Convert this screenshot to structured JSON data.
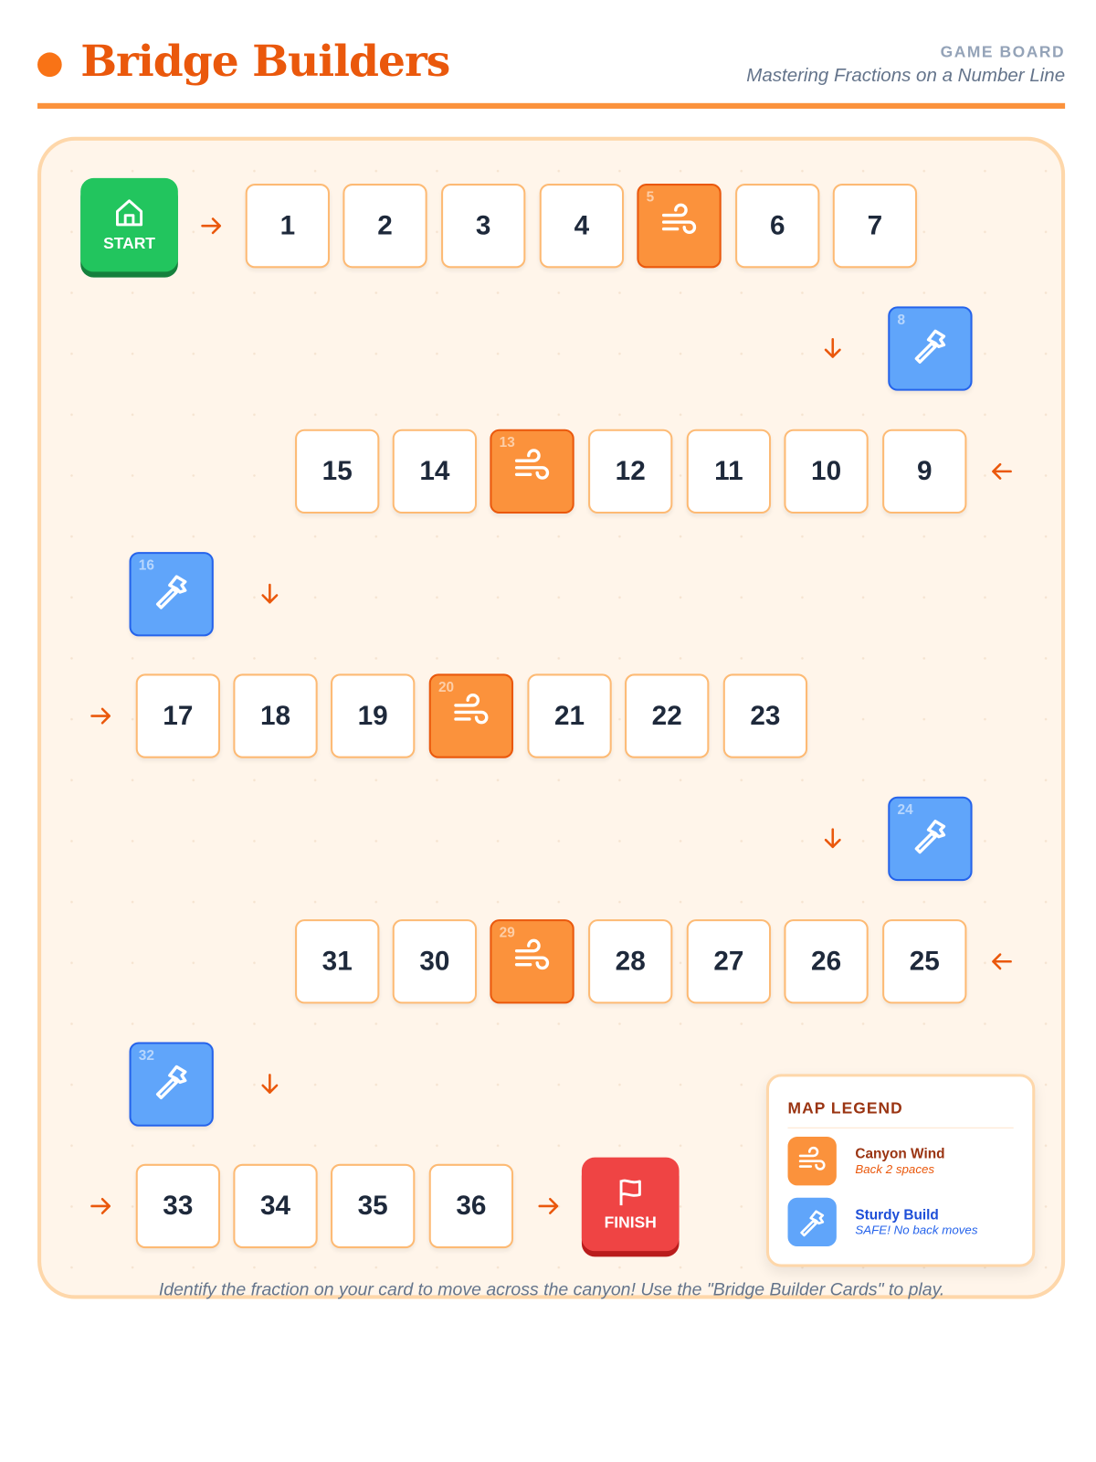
{
  "header": {
    "title": "Bridge Builders",
    "eyebrow": "GAME BOARD",
    "subtitle": "Mastering Fractions on a Number Line"
  },
  "start": {
    "label": "START",
    "icon": "home-icon"
  },
  "finish": {
    "label": "FINISH",
    "icon": "flag-icon"
  },
  "tiles": [
    {
      "n": "1",
      "type": "normal"
    },
    {
      "n": "2",
      "type": "normal"
    },
    {
      "n": "3",
      "type": "normal"
    },
    {
      "n": "4",
      "type": "normal"
    },
    {
      "n": "5",
      "type": "wind"
    },
    {
      "n": "6",
      "type": "normal"
    },
    {
      "n": "7",
      "type": "normal"
    },
    {
      "n": "8",
      "type": "build"
    },
    {
      "n": "9",
      "type": "normal"
    },
    {
      "n": "10",
      "type": "normal"
    },
    {
      "n": "11",
      "type": "normal"
    },
    {
      "n": "12",
      "type": "normal"
    },
    {
      "n": "13",
      "type": "wind"
    },
    {
      "n": "14",
      "type": "normal"
    },
    {
      "n": "15",
      "type": "normal"
    },
    {
      "n": "16",
      "type": "build"
    },
    {
      "n": "17",
      "type": "normal"
    },
    {
      "n": "18",
      "type": "normal"
    },
    {
      "n": "19",
      "type": "normal"
    },
    {
      "n": "20",
      "type": "wind"
    },
    {
      "n": "21",
      "type": "normal"
    },
    {
      "n": "22",
      "type": "normal"
    },
    {
      "n": "23",
      "type": "normal"
    },
    {
      "n": "24",
      "type": "build"
    },
    {
      "n": "25",
      "type": "normal"
    },
    {
      "n": "26",
      "type": "normal"
    },
    {
      "n": "27",
      "type": "normal"
    },
    {
      "n": "28",
      "type": "normal"
    },
    {
      "n": "29",
      "type": "wind"
    },
    {
      "n": "30",
      "type": "normal"
    },
    {
      "n": "31",
      "type": "normal"
    },
    {
      "n": "32",
      "type": "build"
    },
    {
      "n": "33",
      "type": "normal"
    },
    {
      "n": "34",
      "type": "normal"
    },
    {
      "n": "35",
      "type": "normal"
    },
    {
      "n": "36",
      "type": "normal"
    }
  ],
  "arrows": [
    "right",
    "down",
    "left",
    "down",
    "right",
    "down",
    "left",
    "down",
    "right",
    "right"
  ],
  "legend": {
    "title": "MAP LEGEND",
    "items": [
      {
        "name": "Canyon Wind",
        "desc": "Back 2 spaces",
        "icon": "wind-icon",
        "color": "#fb923c",
        "text_color": "#9a3412",
        "desc_color": "#ea580c"
      },
      {
        "name": "Sturdy Build",
        "desc": "SAFE! No back moves",
        "icon": "hammer-icon",
        "color": "#60a5fa",
        "text_color": "#1d4ed8",
        "desc_color": "#2563eb"
      }
    ]
  },
  "footer": "Identify the fraction on your card to move across the canyon! Use the \"Bridge Builder Cards\" to play."
}
